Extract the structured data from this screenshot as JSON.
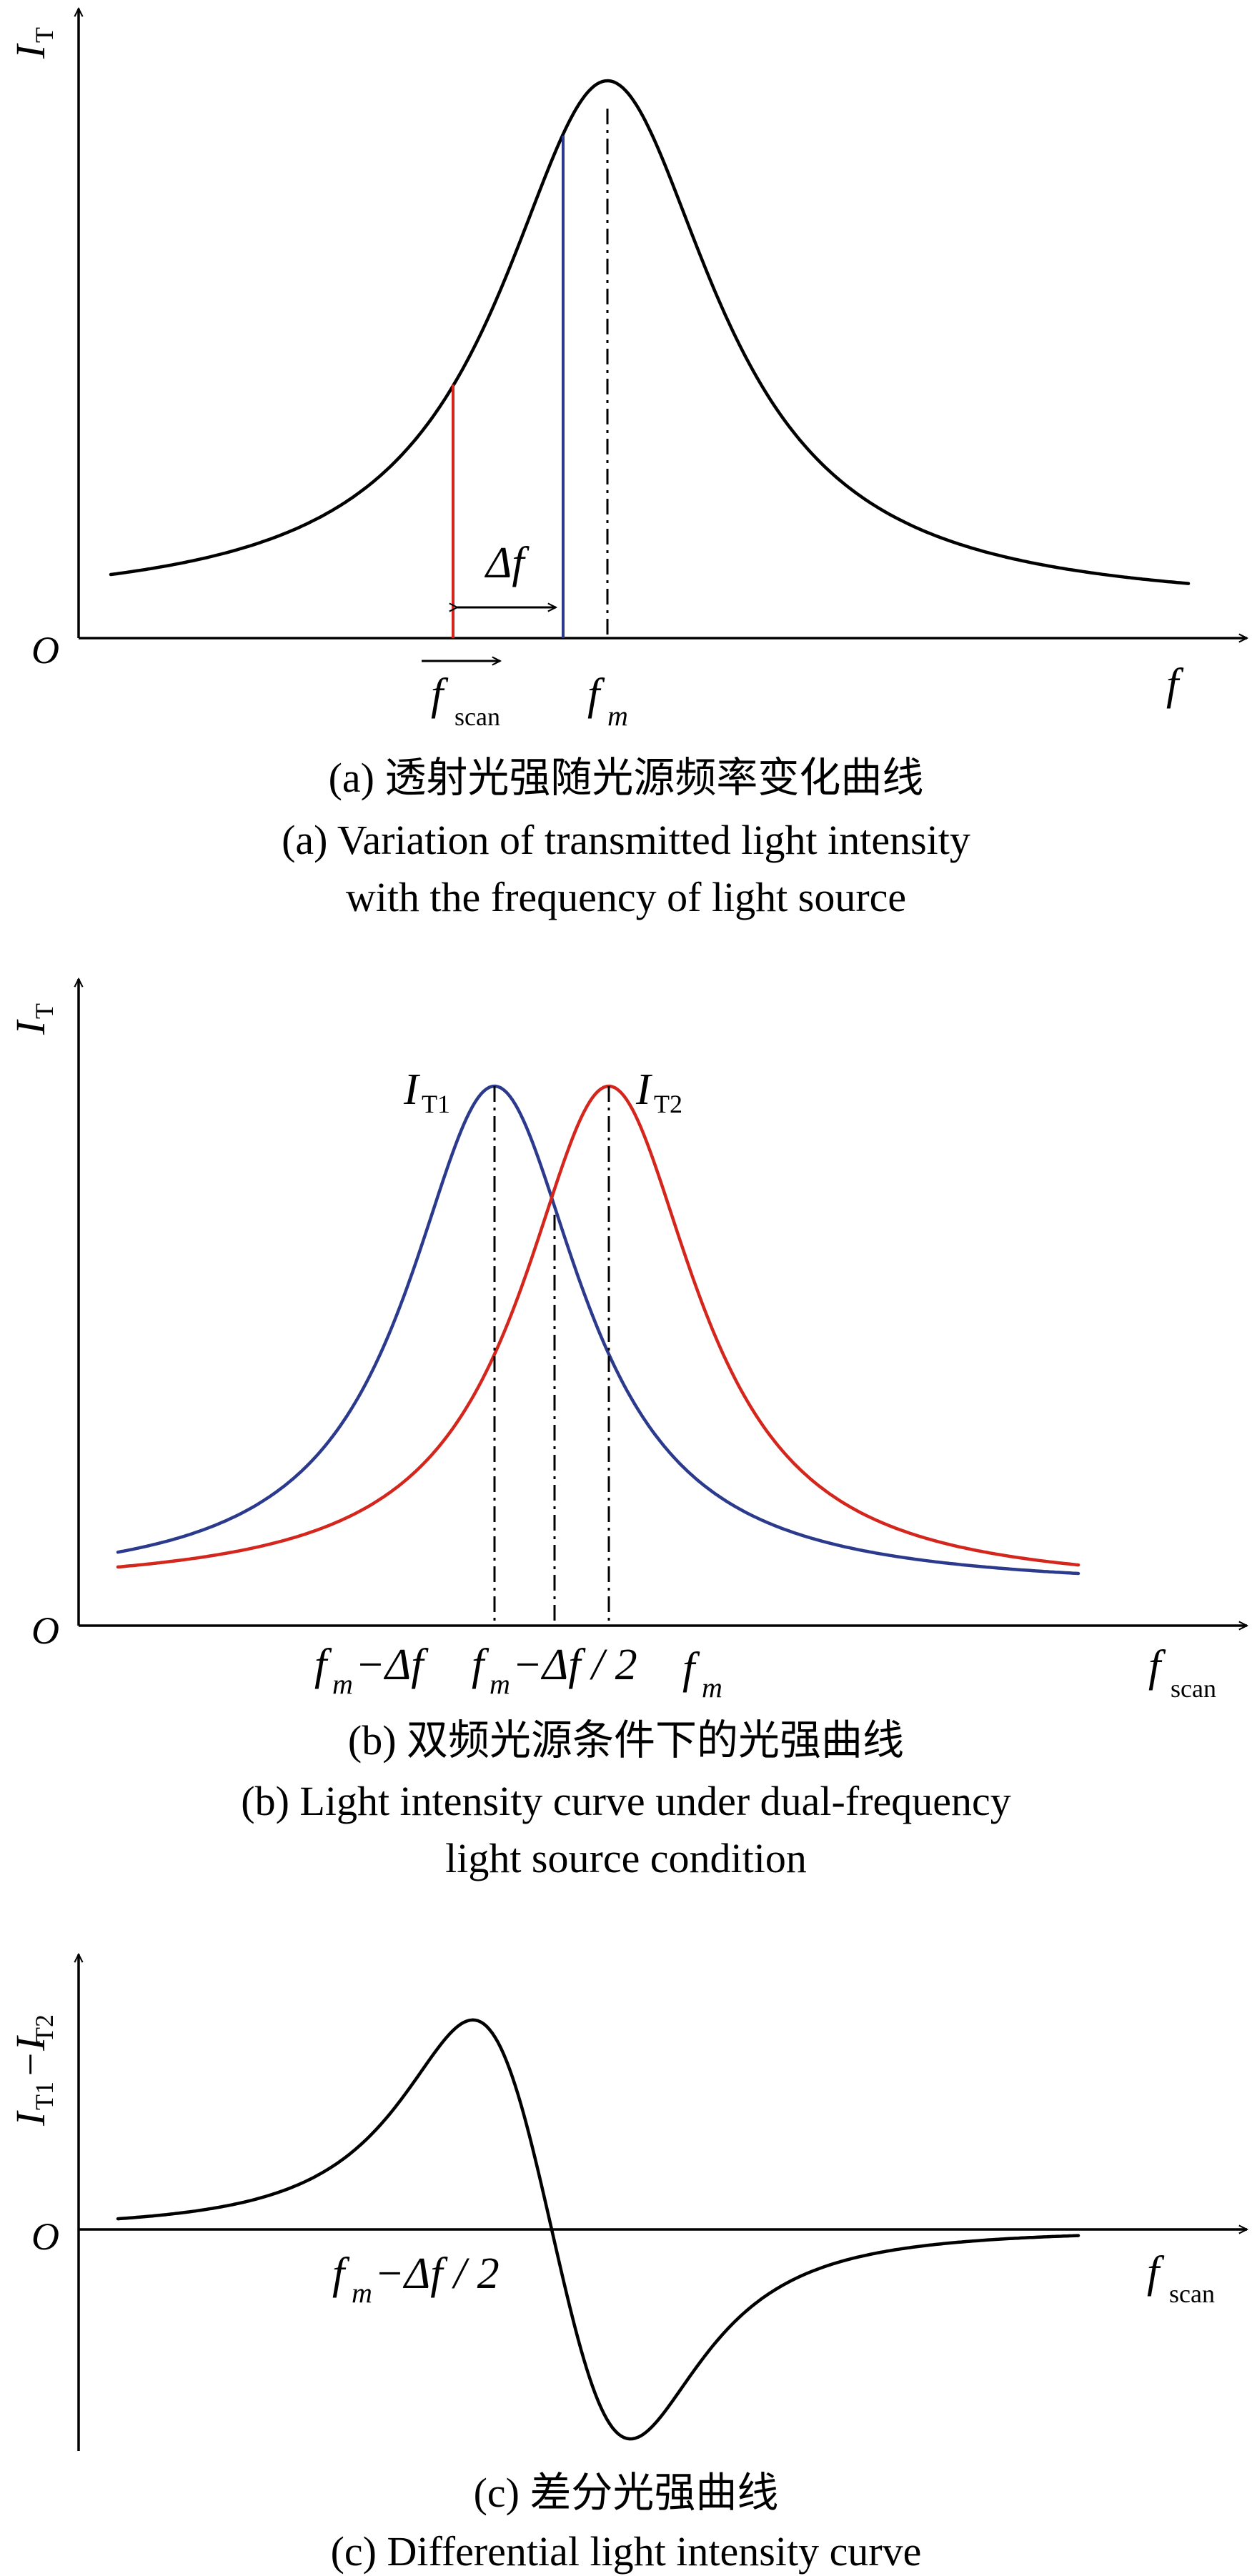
{
  "colors": {
    "black": "#000000",
    "red": "#d4261c",
    "blue": "#2b3a8c"
  },
  "panel_a": {
    "y_label": "I",
    "y_label_sub": "T",
    "origin": "O",
    "x_label": "f",
    "delta_label": "Δf",
    "fscan_main": "f",
    "fscan_sub": "scan",
    "fm_main": "f",
    "fm_sub": "m",
    "caption_cn": "(a) 透射光强随光源频率变化曲线",
    "caption_en_1": "(a) Variation of transmitted light intensity",
    "caption_en_2": "with the frequency of light source"
  },
  "panel_b": {
    "y_label": "I",
    "y_label_sub": "T",
    "origin": "O",
    "curve1_main": "I",
    "curve1_sub": "T1",
    "curve2_main": "I",
    "curve2_sub": "T2",
    "tick1_f": "f",
    "tick1_m": "m",
    "tick1_rest": "−Δf",
    "tick2_f": "f",
    "tick2_m": "m",
    "tick2_rest": "−Δf / 2",
    "tick3_f": "f",
    "tick3_m": "m",
    "x_main": "f",
    "x_sub": "scan",
    "caption_cn": "(b) 双频光源条件下的光强曲线",
    "caption_en_1": "(b) Light intensity curve under dual-frequency",
    "caption_en_2": "light source condition"
  },
  "panel_c": {
    "y_label": "I",
    "y_sub1": "T1",
    "y_dash": "−I",
    "y_sub2": "T2",
    "origin": "O",
    "tick_f": "f",
    "tick_m": "m",
    "tick_rest": "−Δf / 2",
    "x_main": "f",
    "x_sub": "scan",
    "caption_cn": "(c) 差分光强曲线",
    "caption_en": "(c) Differential light intensity curve"
  }
}
